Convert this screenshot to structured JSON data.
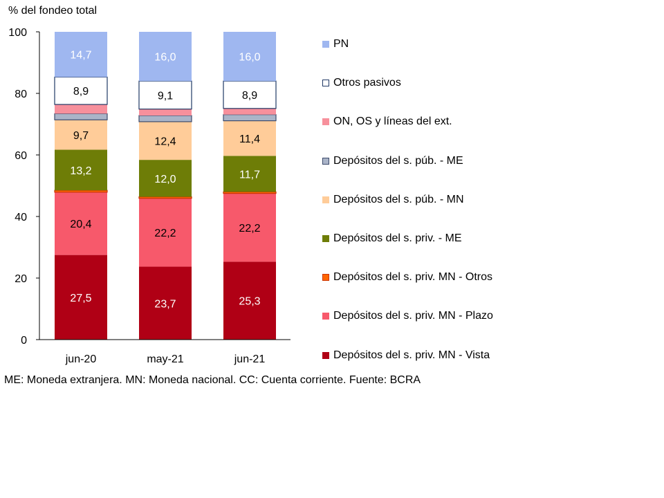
{
  "chart_data": {
    "type": "bar",
    "stacked": true,
    "ylabel": "% del fondeo total",
    "ylim": [
      0,
      100
    ],
    "yticks": [
      0,
      20,
      40,
      60,
      80,
      100
    ],
    "categories": [
      "jun-20",
      "may-21",
      "jun-21"
    ],
    "legend_position": "right",
    "series": [
      {
        "name": "Depósitos del s. priv. MN - Vista",
        "color": "#b00015",
        "stroke": "#b00015",
        "text_color": "#ffffff",
        "values": [
          27.5,
          23.7,
          25.3
        ],
        "labels": [
          "27,5",
          "23,7",
          "25,3"
        ]
      },
      {
        "name": "Depósitos del s. priv. MN - Plazo",
        "color": "#f7596b",
        "stroke": "#f7596b",
        "text_color": "#000000",
        "values": [
          20.4,
          22.2,
          22.2
        ],
        "labels": [
          "20,4",
          "22,2",
          "22,2"
        ]
      },
      {
        "name": "Depósitos del s. priv. MN - Otros",
        "color": "#ff6600",
        "stroke": "#cc3300",
        "text_color": "#000000",
        "values": [
          0.6,
          0.5,
          0.5
        ],
        "labels": [
          "",
          "",
          ""
        ]
      },
      {
        "name": "Depósitos del s. priv. - ME",
        "color": "#6e7d07",
        "stroke": "#6e7d07",
        "text_color": "#ffffff",
        "values": [
          13.2,
          12.0,
          11.7
        ],
        "labels": [
          "13,2",
          "12,0",
          "11,7"
        ]
      },
      {
        "name": "Depósitos del s. púb. - MN",
        "color": "#ffcc99",
        "stroke": "#ffcc99",
        "text_color": "#000000",
        "values": [
          9.7,
          12.4,
          11.4
        ],
        "labels": [
          "9,7",
          "12,4",
          "11,4"
        ]
      },
      {
        "name": "Depósitos del s. púb. - ME",
        "color": "#aab4c8",
        "stroke": "#3c4a6b",
        "text_color": "#000000",
        "values": [
          2.0,
          2.0,
          2.0
        ],
        "labels": [
          "",
          "",
          ""
        ]
      },
      {
        "name": "ON, OS y líneas del ext.",
        "color": "#f7909c",
        "stroke": "#f7909c",
        "text_color": "#000000",
        "values": [
          3.0,
          2.1,
          2.0
        ],
        "labels": [
          "",
          "",
          ""
        ]
      },
      {
        "name": "Otros pasivos",
        "color": "#ffffff",
        "stroke": "#1f3864",
        "text_color": "#000000",
        "values": [
          8.9,
          9.1,
          8.9
        ],
        "labels": [
          "8,9",
          "9,1",
          "8,9"
        ]
      },
      {
        "name": "PN",
        "color": "#9fb7f0",
        "stroke": "#9fb7f0",
        "text_color": "#ffffff",
        "values": [
          14.7,
          16.0,
          16.0
        ],
        "labels": [
          "14,7",
          "16,0",
          "16,0"
        ]
      }
    ]
  },
  "footnote": "ME: Moneda extranjera. MN: Moneda nacional. CC: Cuenta corriente. Fuente: BCRA"
}
